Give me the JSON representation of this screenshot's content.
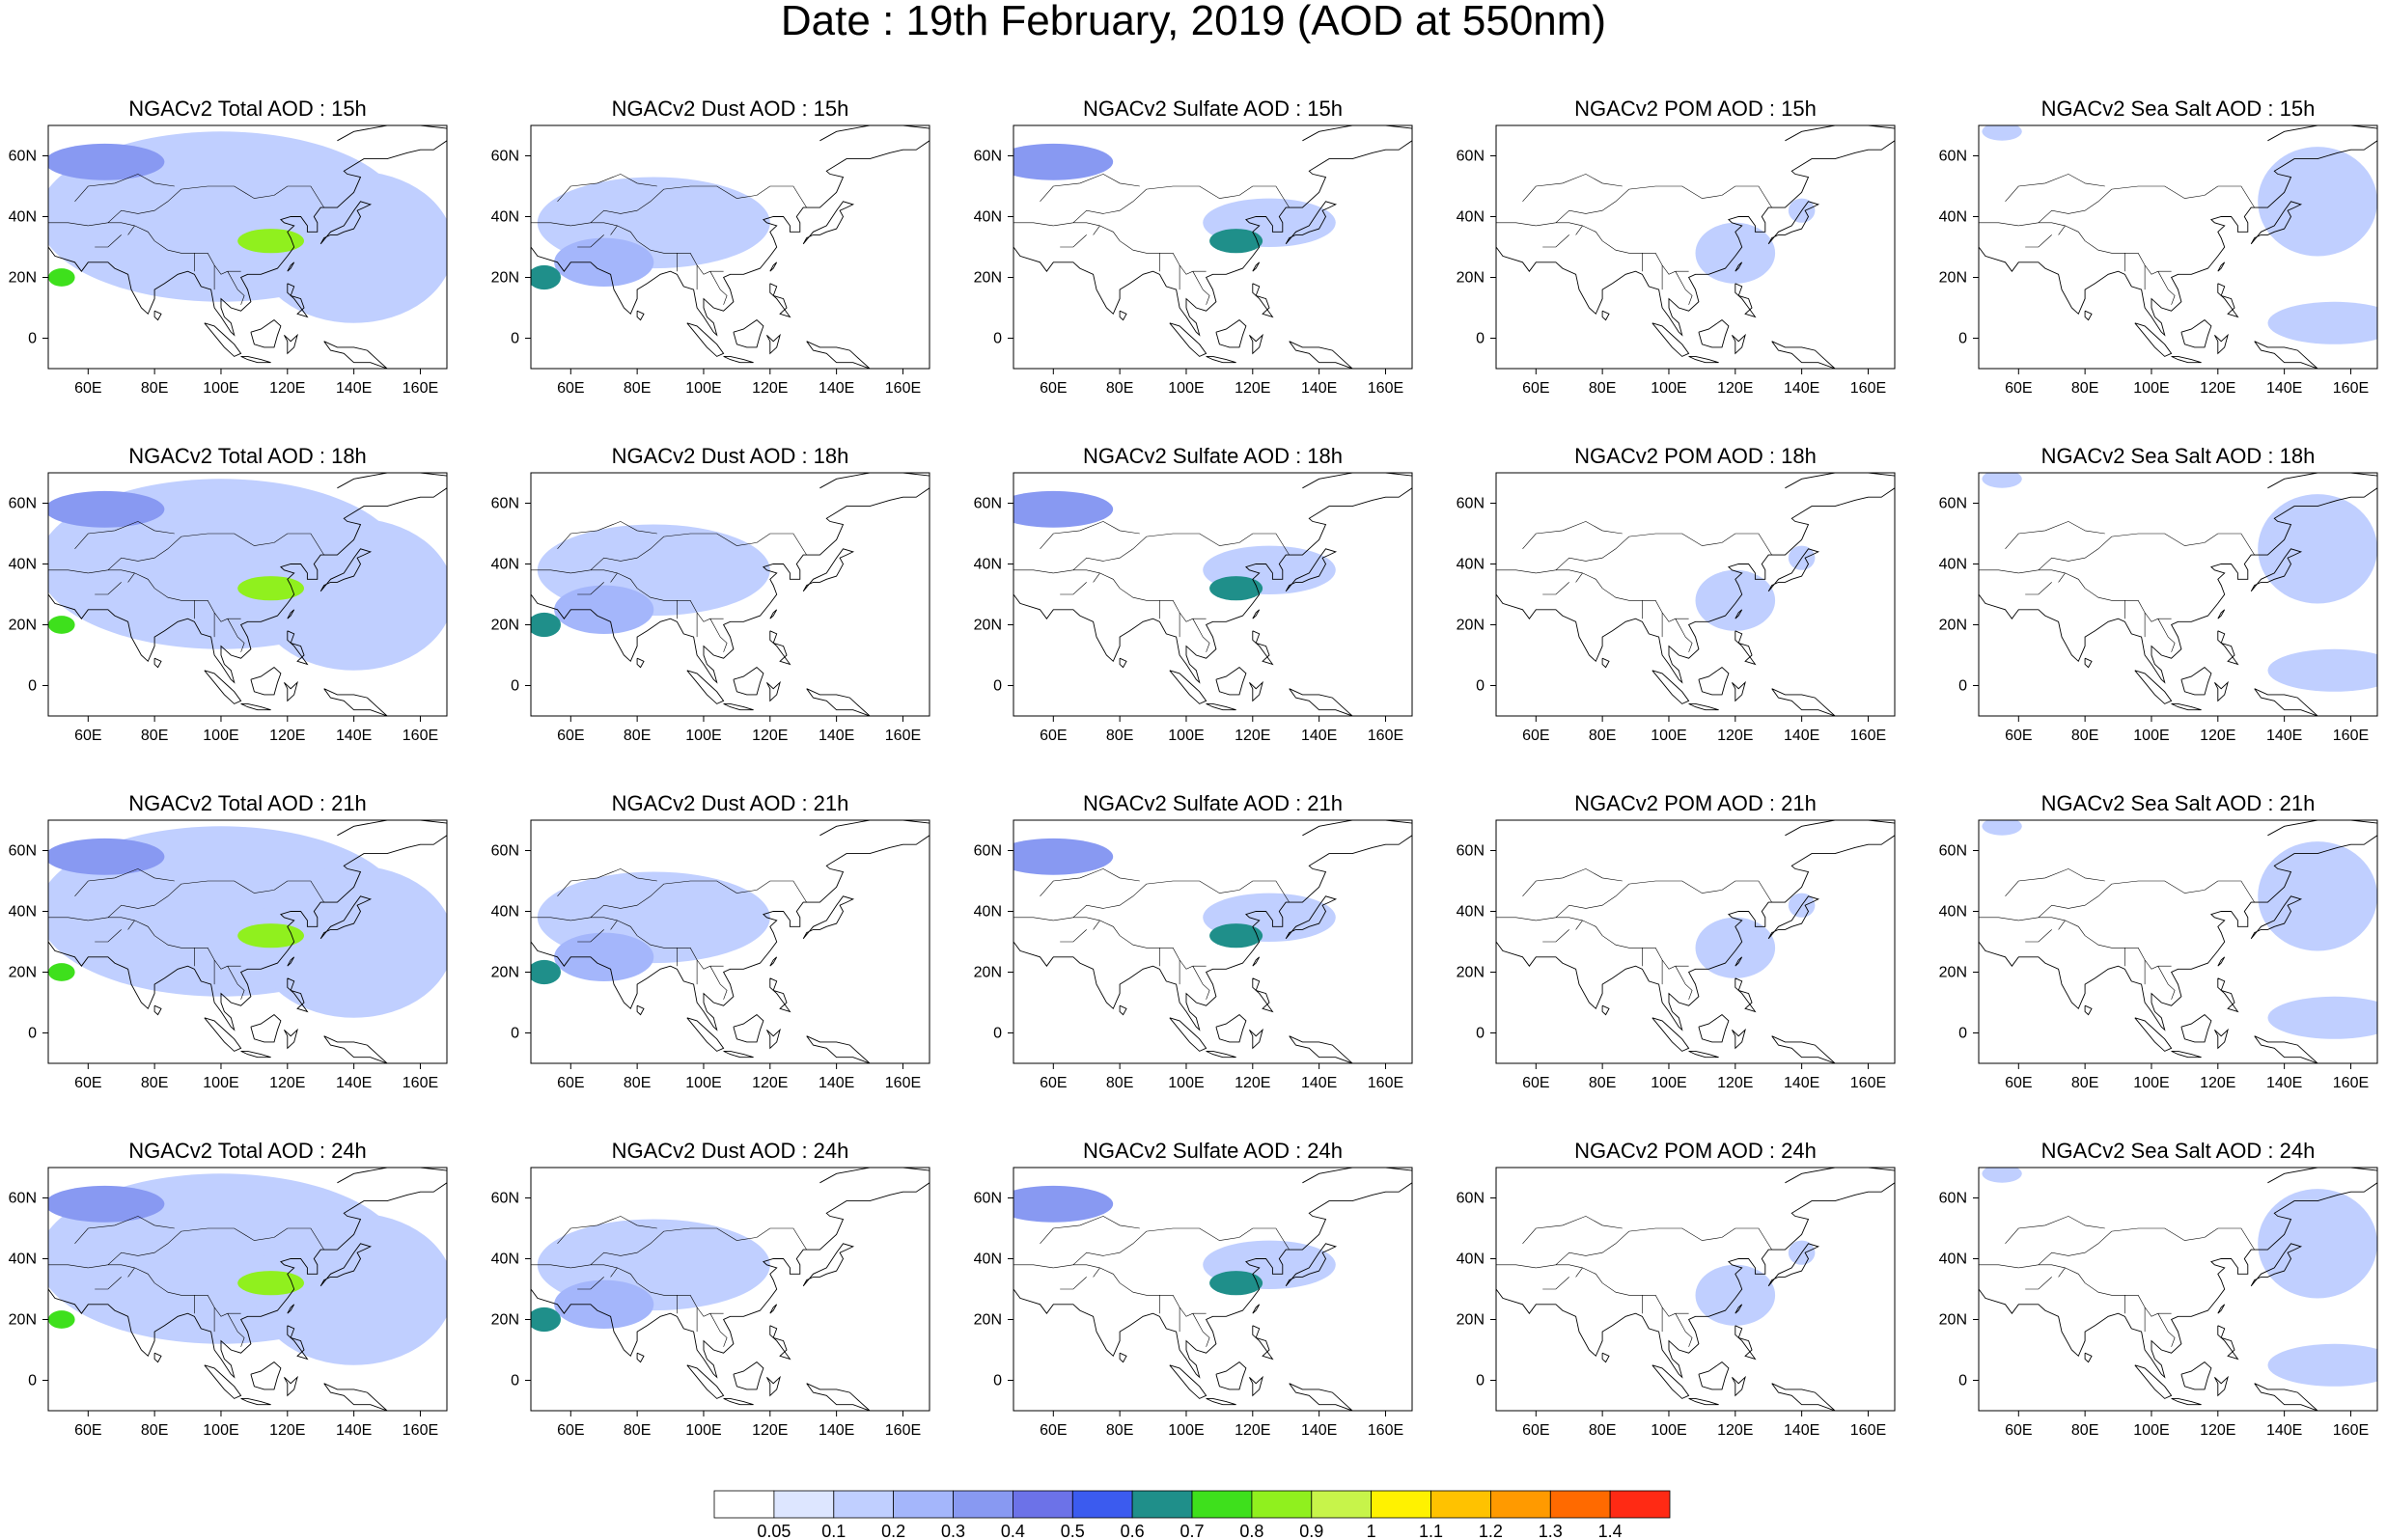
{
  "title": "Date : 19th February, 2019 (AOD at 550nm)",
  "chart_data": {
    "type": "heatmap",
    "title": "Date : 19th February, 2019 (AOD at 550nm)",
    "region": {
      "lon_range": [
        48,
        168
      ],
      "lat_range": [
        -10,
        70
      ]
    },
    "x_ticks": [
      60,
      80,
      100,
      120,
      140,
      160
    ],
    "x_tick_labels": [
      "60E",
      "80E",
      "100E",
      "120E",
      "140E",
      "160E"
    ],
    "y_ticks": [
      0,
      20,
      40,
      60
    ],
    "y_tick_labels": [
      "0",
      "20N",
      "40N",
      "60N"
    ],
    "species": [
      "Total",
      "Dust",
      "Sulfate",
      "POM",
      "Sea Salt"
    ],
    "hours": [
      "15h",
      "18h",
      "21h",
      "24h"
    ],
    "panel_titles": [
      [
        "NGACv2 Total AOD : 15h",
        "NGACv2 Dust AOD : 15h",
        "NGACv2 Sulfate AOD : 15h",
        "NGACv2 POM AOD : 15h",
        "NGACv2 Sea Salt AOD : 15h"
      ],
      [
        "NGACv2 Total AOD : 18h",
        "NGACv2 Dust AOD : 18h",
        "NGACv2 Sulfate AOD : 18h",
        "NGACv2 POM AOD : 18h",
        "NGACv2 Sea Salt AOD : 18h"
      ],
      [
        "NGACv2 Total AOD : 21h",
        "NGACv2 Dust AOD : 21h",
        "NGACv2 Sulfate AOD : 21h",
        "NGACv2 POM AOD : 21h",
        "NGACv2 Sea Salt AOD : 21h"
      ],
      [
        "NGACv2 Total AOD : 24h",
        "NGACv2 Dust AOD : 24h",
        "NGACv2 Sulfate AOD : 24h",
        "NGACv2 POM AOD : 24h",
        "NGACv2 Sea Salt  AOD : 24h"
      ]
    ],
    "colorbar": {
      "levels": [
        0.05,
        0.1,
        0.2,
        0.3,
        0.4,
        0.5,
        0.6,
        0.7,
        0.8,
        0.9,
        1,
        1.1,
        1.2,
        1.3,
        1.4
      ],
      "labels": [
        "0.05",
        "0.1",
        "0.2",
        "0.3",
        "0.4",
        "0.5",
        "0.6",
        "0.7",
        "0.8",
        "0.9",
        "1",
        "1.1",
        "1.2",
        "1.3",
        "1.4"
      ],
      "colors": [
        "#ffffff",
        "#dde6ff",
        "#c0cfff",
        "#a4b6fb",
        "#8899f2",
        "#6c72e8",
        "#3b5bef",
        "#1f8f8a",
        "#3ee01c",
        "#90f01e",
        "#c7f44a",
        "#fff200",
        "#ffc200",
        "#ff9a00",
        "#ff6a00",
        "#ff2a14"
      ]
    },
    "features": {
      "Total": [
        {
          "lon": 115,
          "lat": 32,
          "lon_rad": 10,
          "lat_rad": 4,
          "value": 0.85
        },
        {
          "lon": 52,
          "lat": 20,
          "lon_rad": 4,
          "lat_rad": 3,
          "value": 0.7
        },
        {
          "lon": 100,
          "lat": 40,
          "lon_rad": 55,
          "lat_rad": 28,
          "value": 0.1
        },
        {
          "lon": 140,
          "lat": 30,
          "lon_rad": 30,
          "lat_rad": 25,
          "value": 0.1
        },
        {
          "lon": 65,
          "lat": 58,
          "lon_rad": 18,
          "lat_rad": 6,
          "value": 0.3
        }
      ],
      "Dust": [
        {
          "lon": 52,
          "lat": 20,
          "lon_rad": 5,
          "lat_rad": 4,
          "value": 0.6
        },
        {
          "lon": 85,
          "lat": 38,
          "lon_rad": 35,
          "lat_rad": 15,
          "value": 0.12
        },
        {
          "lon": 70,
          "lat": 25,
          "lon_rad": 15,
          "lat_rad": 8,
          "value": 0.2
        }
      ],
      "Sulfate": [
        {
          "lon": 115,
          "lat": 32,
          "lon_rad": 8,
          "lat_rad": 4,
          "value": 0.6
        },
        {
          "lon": 60,
          "lat": 58,
          "lon_rad": 18,
          "lat_rad": 6,
          "value": 0.3
        },
        {
          "lon": 125,
          "lat": 38,
          "lon_rad": 20,
          "lat_rad": 8,
          "value": 0.12
        }
      ],
      "POM": [
        {
          "lon": 120,
          "lat": 28,
          "lon_rad": 12,
          "lat_rad": 10,
          "value": 0.12
        },
        {
          "lon": 140,
          "lat": 42,
          "lon_rad": 4,
          "lat_rad": 4,
          "value": 0.12
        }
      ],
      "Sea Salt": [
        {
          "lon": 150,
          "lat": 45,
          "lon_rad": 18,
          "lat_rad": 18,
          "value": 0.12
        },
        {
          "lon": 155,
          "lat": 5,
          "lon_rad": 20,
          "lat_rad": 7,
          "value": 0.15
        },
        {
          "lon": 55,
          "lat": 68,
          "lon_rad": 6,
          "lat_rad": 3,
          "value": 0.12
        }
      ]
    }
  }
}
